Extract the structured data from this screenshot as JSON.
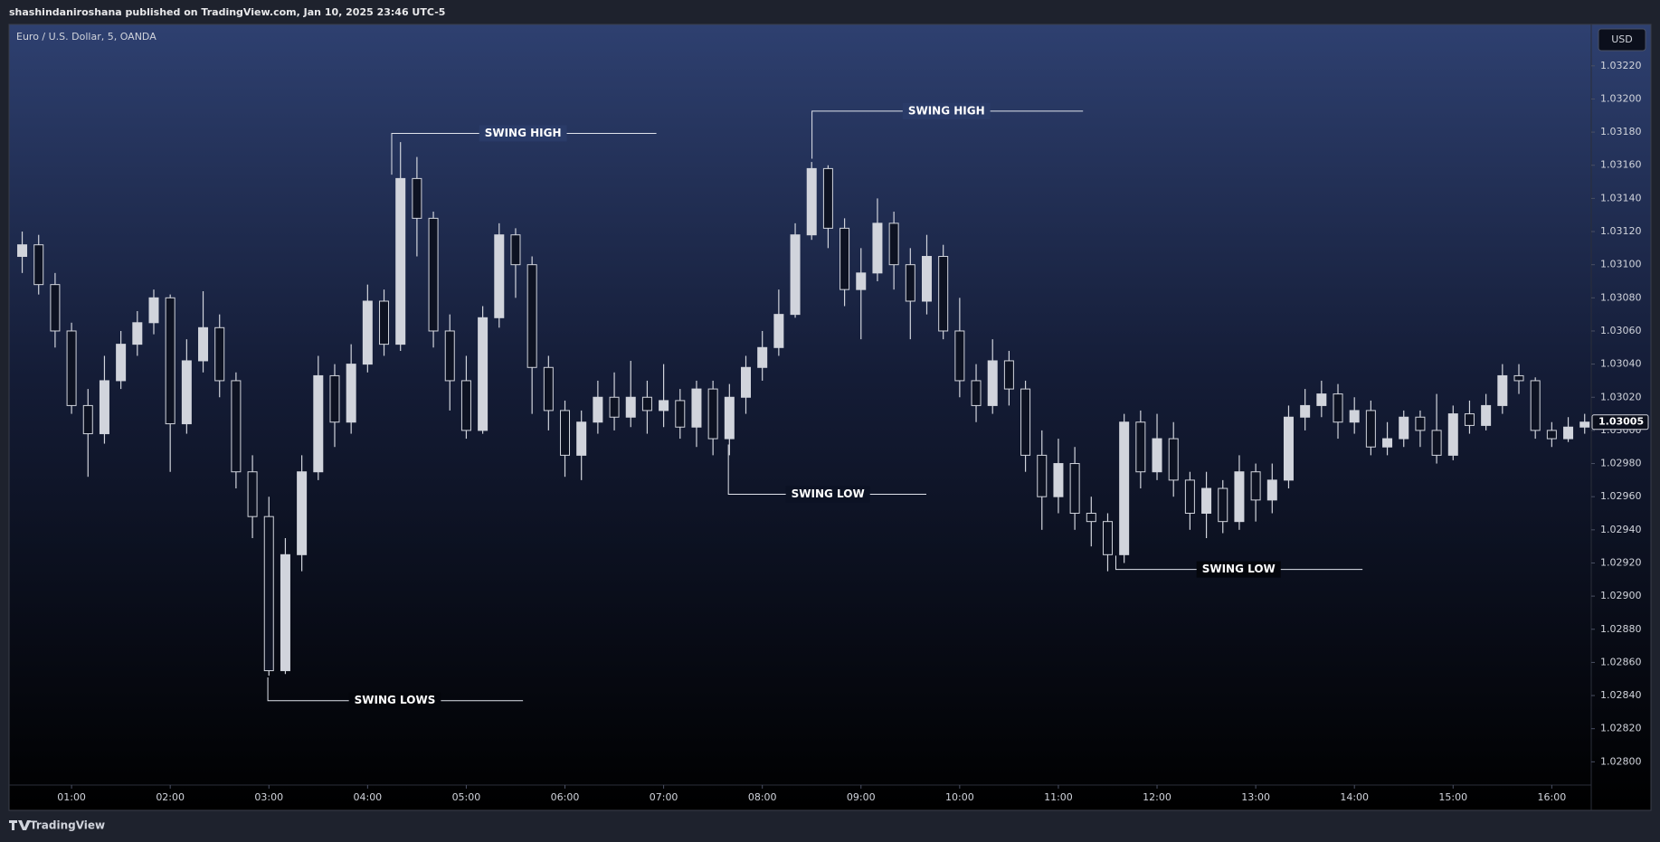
{
  "header": {
    "text": "shashindaniroshana published on TradingView.com, Jan 10, 2025 23:46 UTC-5"
  },
  "chart_data": {
    "type": "candlestick",
    "title": "Euro / U.S. Dollar, 5, OANDA",
    "currency": "USD",
    "current_price": 1.03005,
    "up_color": "#d1d4dc",
    "down_color": "#d1d4dc",
    "x": [
      30,
      40,
      50,
      60,
      70,
      80,
      90,
      100,
      110,
      120,
      130,
      140,
      150,
      160,
      170,
      180,
      190,
      200,
      210,
      220,
      230,
      240,
      250,
      260,
      270,
      280,
      290,
      300,
      310,
      320,
      330,
      340,
      350,
      360,
      370,
      380,
      390,
      400,
      410,
      420,
      430,
      440,
      450,
      460,
      470,
      480,
      490,
      500,
      510,
      520,
      530,
      540,
      550,
      560,
      570,
      580,
      590,
      600,
      610,
      620,
      630,
      640,
      650,
      660,
      670,
      680,
      690,
      700,
      710,
      720,
      730,
      740,
      750,
      760,
      770,
      780,
      790,
      800,
      810,
      820,
      830,
      840,
      850,
      860,
      870,
      880,
      890,
      900,
      910,
      920,
      930,
      940,
      950,
      960,
      970,
      980
    ],
    "open": [
      1.03105,
      1.03112,
      1.03088,
      1.0306,
      1.03015,
      1.02998,
      1.0303,
      1.03052,
      1.03065,
      1.0308,
      1.03004,
      1.03042,
      1.03062,
      1.0303,
      1.02975,
      1.02948,
      1.02855,
      1.02925,
      1.02975,
      1.03033,
      1.03005,
      1.0304,
      1.03078,
      1.03052,
      1.03152,
      1.03128,
      1.0306,
      1.0303,
      1.03,
      1.03068,
      1.03118,
      1.031,
      1.03038,
      1.03012,
      1.02985,
      1.03005,
      1.0302,
      1.03008,
      1.0302,
      1.03012,
      1.03018,
      1.03002,
      1.03025,
      1.02995,
      1.0302,
      1.03038,
      1.0305,
      1.0307,
      1.03118,
      1.03158,
      1.03122,
      1.03085,
      1.03095,
      1.03125,
      1.031,
      1.03078,
      1.03105,
      1.0306,
      1.0303,
      1.03015,
      1.03042,
      1.03025,
      1.02985,
      1.0296,
      1.0298,
      1.0295,
      1.02945,
      1.02925,
      1.03005,
      1.02975,
      1.02995,
      1.0297,
      1.0295,
      1.02965,
      1.02945,
      1.02975,
      1.02958,
      1.0297,
      1.03008,
      1.03015,
      1.03022,
      1.03005,
      1.03012,
      1.0299,
      1.02995,
      1.03008,
      1.03,
      1.02985,
      1.0301,
      1.03003,
      1.03015,
      1.03033,
      1.0303,
      1.03,
      1.02995,
      1.03002
    ],
    "high": [
      1.0312,
      1.03118,
      1.03095,
      1.03065,
      1.03025,
      1.03045,
      1.0306,
      1.03072,
      1.03085,
      1.03082,
      1.03055,
      1.03084,
      1.0307,
      1.03035,
      1.02985,
      1.0296,
      1.02935,
      1.02985,
      1.03045,
      1.0304,
      1.03052,
      1.03088,
      1.03085,
      1.03174,
      1.03165,
      1.03132,
      1.0307,
      1.03045,
      1.03075,
      1.03125,
      1.03122,
      1.03105,
      1.03045,
      1.03018,
      1.03012,
      1.0303,
      1.03035,
      1.03042,
      1.0303,
      1.0304,
      1.03025,
      1.0303,
      1.0303,
      1.03028,
      1.03045,
      1.0306,
      1.03085,
      1.03125,
      1.03162,
      1.0316,
      1.03128,
      1.0311,
      1.0314,
      1.03132,
      1.0311,
      1.03118,
      1.03112,
      1.0308,
      1.0304,
      1.03055,
      1.03048,
      1.0303,
      1.03,
      1.02995,
      1.0299,
      1.0296,
      1.0295,
      1.0301,
      1.03012,
      1.0301,
      1.03005,
      1.02975,
      1.02975,
      1.0297,
      1.02985,
      1.0298,
      1.0298,
      1.03015,
      1.03025,
      1.0303,
      1.03028,
      1.0302,
      1.03018,
      1.03005,
      1.03012,
      1.03012,
      1.03022,
      1.03015,
      1.03018,
      1.03022,
      1.0304,
      1.0304,
      1.03032,
      1.03005,
      1.03008,
      1.0301
    ],
    "low": [
      1.03095,
      1.03082,
      1.0305,
      1.0301,
      1.02972,
      1.02992,
      1.03025,
      1.03045,
      1.03058,
      1.02975,
      1.02998,
      1.03035,
      1.0302,
      1.02965,
      1.02935,
      1.02852,
      1.02853,
      1.02915,
      1.0297,
      1.0299,
      1.02998,
      1.03035,
      1.03045,
      1.03048,
      1.03105,
      1.0305,
      1.03012,
      1.02995,
      1.02998,
      1.03062,
      1.0308,
      1.0301,
      1.03,
      1.02972,
      1.0297,
      1.02998,
      1.03,
      1.03002,
      1.02998,
      1.03002,
      1.02995,
      1.0299,
      1.02985,
      1.02985,
      1.0301,
      1.0303,
      1.03045,
      1.03068,
      1.03115,
      1.0311,
      1.03075,
      1.03055,
      1.0309,
      1.03085,
      1.03055,
      1.0307,
      1.03055,
      1.0302,
      1.03005,
      1.0301,
      1.03015,
      1.02975,
      1.0294,
      1.0295,
      1.0294,
      1.0293,
      1.02915,
      1.0292,
      1.02965,
      1.0297,
      1.0296,
      1.0294,
      1.02935,
      1.02938,
      1.0294,
      1.02945,
      1.0295,
      1.02965,
      1.03,
      1.03008,
      1.02995,
      1.02998,
      1.02985,
      1.02985,
      1.0299,
      1.0299,
      1.0298,
      1.02982,
      1.02998,
      1.03,
      1.0301,
      1.03022,
      1.02995,
      1.0299,
      1.02993,
      1.02998
    ],
    "close": [
      1.03112,
      1.03088,
      1.0306,
      1.03015,
      1.02998,
      1.0303,
      1.03052,
      1.03065,
      1.0308,
      1.03004,
      1.03042,
      1.03062,
      1.0303,
      1.02975,
      1.02948,
      1.02855,
      1.02925,
      1.02975,
      1.03033,
      1.03005,
      1.0304,
      1.03078,
      1.03052,
      1.03152,
      1.03128,
      1.0306,
      1.0303,
      1.03,
      1.03068,
      1.03118,
      1.031,
      1.03038,
      1.03012,
      1.02985,
      1.03005,
      1.0302,
      1.03008,
      1.0302,
      1.03012,
      1.03018,
      1.03002,
      1.03025,
      1.02995,
      1.0302,
      1.03038,
      1.0305,
      1.0307,
      1.03118,
      1.03158,
      1.03122,
      1.03085,
      1.03095,
      1.03125,
      1.031,
      1.03078,
      1.03105,
      1.0306,
      1.0303,
      1.03015,
      1.03042,
      1.03025,
      1.02985,
      1.0296,
      1.0298,
      1.0295,
      1.02945,
      1.02925,
      1.03005,
      1.02975,
      1.02995,
      1.0297,
      1.0295,
      1.02965,
      1.02945,
      1.02975,
      1.02958,
      1.0297,
      1.03008,
      1.03015,
      1.03022,
      1.03005,
      1.03012,
      1.0299,
      1.02995,
      1.03008,
      1.03,
      1.02985,
      1.0301,
      1.03003,
      1.03015,
      1.03033,
      1.0303,
      1.03,
      1.02995,
      1.03002,
      1.03005
    ],
    "xlim": [
      22,
      984
    ],
    "ylim": [
      1.02786,
      1.03245
    ],
    "xticks": [
      {
        "value": 60,
        "label": "01:00"
      },
      {
        "value": 120,
        "label": "02:00"
      },
      {
        "value": 180,
        "label": "03:00"
      },
      {
        "value": 240,
        "label": "04:00"
      },
      {
        "value": 300,
        "label": "05:00"
      },
      {
        "value": 360,
        "label": "06:00"
      },
      {
        "value": 420,
        "label": "07:00"
      },
      {
        "value": 480,
        "label": "08:00"
      },
      {
        "value": 540,
        "label": "09:00"
      },
      {
        "value": 600,
        "label": "10:00"
      },
      {
        "value": 660,
        "label": "11:00"
      },
      {
        "value": 720,
        "label": "12:00"
      },
      {
        "value": 780,
        "label": "13:00"
      },
      {
        "value": 840,
        "label": "14:00"
      },
      {
        "value": 900,
        "label": "15:00"
      },
      {
        "value": 960,
        "label": "16:00"
      }
    ],
    "yticks": [
      {
        "value": 1.028,
        "label": "1.02800"
      },
      {
        "value": 1.0282,
        "label": "1.02820"
      },
      {
        "value": 1.0284,
        "label": "1.02840"
      },
      {
        "value": 1.0286,
        "label": "1.02860"
      },
      {
        "value": 1.0288,
        "label": "1.02880"
      },
      {
        "value": 1.029,
        "label": "1.02900"
      },
      {
        "value": 1.0292,
        "label": "1.02920"
      },
      {
        "value": 1.0294,
        "label": "1.02940"
      },
      {
        "value": 1.0296,
        "label": "1.02960"
      },
      {
        "value": 1.0298,
        "label": "1.02980"
      },
      {
        "value": 1.03,
        "label": "1.03000"
      },
      {
        "value": 1.0302,
        "label": "1.03020"
      },
      {
        "value": 1.0304,
        "label": "1.03040"
      },
      {
        "value": 1.0306,
        "label": "1.03060"
      },
      {
        "value": 1.0308,
        "label": "1.03080"
      },
      {
        "value": 1.031,
        "label": "1.03100"
      },
      {
        "value": 1.0312,
        "label": "1.03120"
      },
      {
        "value": 1.0314,
        "label": "1.03140"
      },
      {
        "value": 1.0316,
        "label": "1.03160"
      },
      {
        "value": 1.0318,
        "label": "1.03180"
      },
      {
        "value": 1.032,
        "label": "1.03200"
      },
      {
        "value": 1.0322,
        "label": "1.03220"
      }
    ],
    "annotations": [
      "SWING HIGH",
      "SWING HIGH",
      "SWING LOWS",
      "SWING LOW",
      "SWING LOW"
    ]
  },
  "footer": {
    "brand": "TradingView"
  }
}
